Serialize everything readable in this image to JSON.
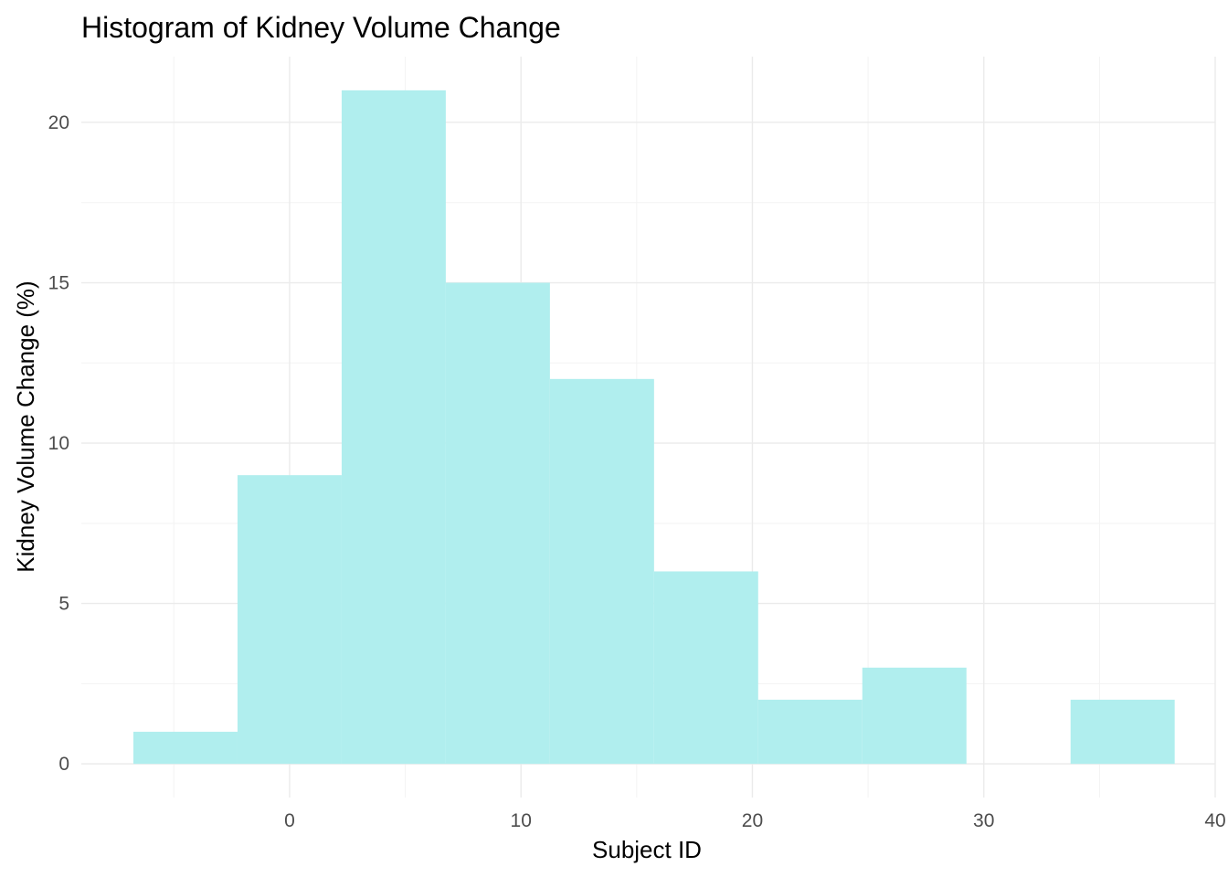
{
  "chart_data": {
    "type": "bar",
    "title": "Histogram of Kidney Volume Change",
    "xlabel": "Subject ID",
    "ylabel": "Kidney Volume Change (%)",
    "bins": [
      {
        "x0": -6.75,
        "x1": -2.25,
        "count": 1
      },
      {
        "x0": -2.25,
        "x1": 2.25,
        "count": 9
      },
      {
        "x0": 2.25,
        "x1": 6.75,
        "count": 21
      },
      {
        "x0": 6.75,
        "x1": 11.25,
        "count": 15
      },
      {
        "x0": 11.25,
        "x1": 15.75,
        "count": 12
      },
      {
        "x0": 15.75,
        "x1": 20.25,
        "count": 6
      },
      {
        "x0": 20.25,
        "x1": 24.75,
        "count": 2
      },
      {
        "x0": 24.75,
        "x1": 29.25,
        "count": 3
      },
      {
        "x0": 29.25,
        "x1": 33.75,
        "count": 0
      },
      {
        "x0": 33.75,
        "x1": 38.25,
        "count": 2
      }
    ],
    "xlim": [
      -9.0,
      40.0
    ],
    "ylim": [
      -1.05,
      22.05
    ],
    "xticks": [
      0,
      10,
      20,
      30,
      40
    ],
    "yticks": [
      0,
      5,
      10,
      15,
      20
    ],
    "grid": true,
    "bar_color": "#b0eeee"
  }
}
